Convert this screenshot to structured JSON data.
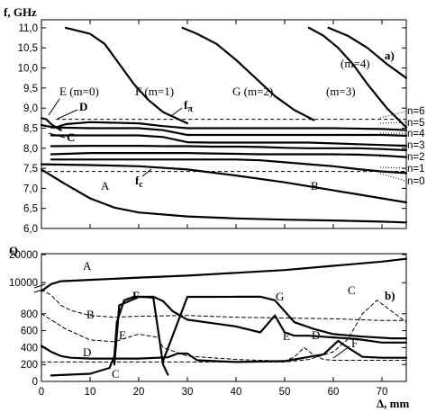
{
  "chart_data": [
    {
      "panel_label": "a)",
      "type": "line",
      "ylabel": "f, GHz",
      "xlim": [
        0,
        75
      ],
      "ylim": [
        6.0,
        11.2
      ],
      "yticks": [
        "6,0",
        "6,5",
        "7,0",
        "7,5",
        "8,0",
        "8,5",
        "9,0",
        "9,5",
        "10,0",
        "10,5",
        "11,0"
      ],
      "grid": false,
      "series": [
        {
          "name": "A",
          "style": "solid",
          "x": [
            0,
            5,
            10,
            15,
            20,
            30,
            40,
            50,
            60,
            70,
            75
          ],
          "y": [
            7.47,
            7.1,
            6.75,
            6.52,
            6.4,
            6.3,
            6.25,
            6.22,
            6.2,
            6.17,
            6.15
          ]
        },
        {
          "name": "B",
          "style": "solid",
          "x": [
            0,
            10,
            20,
            30,
            40,
            50,
            60,
            70,
            75
          ],
          "y": [
            7.6,
            7.58,
            7.55,
            7.47,
            7.32,
            7.15,
            6.95,
            6.75,
            6.65
          ]
        },
        {
          "style": "solid",
          "x": [
            2,
            10,
            20,
            25,
            30,
            35,
            40,
            45,
            50,
            55,
            60,
            65,
            70,
            75
          ],
          "y": [
            7.72,
            7.72,
            7.72,
            7.72,
            7.72,
            7.72,
            7.72,
            7.7,
            7.65,
            7.6,
            7.55,
            7.48,
            7.42,
            7.38
          ]
        },
        {
          "style": "solid",
          "x": [
            2,
            10,
            20,
            25,
            30,
            35,
            40,
            45,
            50,
            55,
            60,
            65,
            70,
            75
          ],
          "y": [
            7.85,
            7.88,
            7.88,
            7.88,
            7.88,
            7.87,
            7.86,
            7.85,
            7.85,
            7.85,
            7.85,
            7.84,
            7.82,
            7.78
          ]
        },
        {
          "style": "solid",
          "x": [
            2,
            10,
            20,
            25,
            30,
            35,
            40,
            45,
            50,
            55,
            60,
            65,
            70,
            75
          ],
          "y": [
            8.05,
            8.06,
            8.06,
            8.05,
            8.05,
            8.04,
            8.04,
            8.03,
            8.01,
            8.0,
            8.0,
            8.0,
            7.98,
            7.95
          ]
        },
        {
          "style": "solid",
          "x": [
            2,
            10,
            20,
            25,
            30,
            35,
            40,
            45,
            50,
            55,
            60,
            65,
            70,
            75
          ],
          "y": [
            8.32,
            8.32,
            8.32,
            8.28,
            8.15,
            8.14,
            8.14,
            8.14,
            8.14,
            8.14,
            8.12,
            8.1,
            8.08,
            8.06
          ]
        },
        {
          "style": "solid",
          "x": [
            2,
            10,
            20,
            25,
            30,
            35,
            40,
            45,
            50,
            55,
            60,
            65,
            70,
            75
          ],
          "y": [
            8.52,
            8.5,
            8.5,
            8.45,
            8.33,
            8.33,
            8.33,
            8.33,
            8.33,
            8.33,
            8.33,
            8.33,
            8.33,
            8.31
          ]
        },
        {
          "name": "D",
          "style": "solid",
          "x": [
            0,
            1,
            3,
            5,
            10,
            20,
            25,
            30,
            40,
            50,
            60,
            70,
            75
          ],
          "y": [
            8.58,
            8.55,
            8.52,
            8.6,
            8.65,
            8.62,
            8.55,
            8.5,
            8.5,
            8.5,
            8.5,
            8.48,
            8.45
          ]
        },
        {
          "name": "E (m=0)",
          "style": "solid",
          "x": [
            0,
            1,
            2,
            3,
            4
          ],
          "y": [
            8.75,
            8.72,
            8.6,
            8.52,
            8.45
          ]
        },
        {
          "name": "F (m=1)",
          "style": "solid",
          "x": [
            5,
            10,
            13,
            16,
            19,
            22,
            25,
            30
          ],
          "y": [
            11.0,
            10.85,
            10.6,
            10.1,
            9.6,
            9.2,
            8.9,
            8.62
          ]
        },
        {
          "name": "G (m=2)",
          "style": "solid",
          "x": [
            29,
            32,
            36,
            40,
            44,
            48,
            52,
            56
          ],
          "y": [
            11.0,
            10.85,
            10.6,
            10.2,
            9.75,
            9.3,
            8.95,
            8.7
          ]
        },
        {
          "name": "(m=3)",
          "style": "solid",
          "x": [
            55,
            58,
            61,
            64,
            67,
            71,
            75
          ],
          "y": [
            11.0,
            10.8,
            10.5,
            10.1,
            9.6,
            9.0,
            8.52
          ]
        },
        {
          "name": "(m=4)",
          "style": "solid",
          "x": [
            59,
            63,
            67,
            71,
            75
          ],
          "y": [
            11.0,
            10.8,
            10.5,
            10.1,
            9.75
          ]
        }
      ],
      "reference_lines": [
        {
          "label": "fπ",
          "y": 8.72,
          "style": "dashed",
          "x": [
            3,
            75
          ]
        },
        {
          "label": "fc",
          "y": 7.42,
          "style": "dashed",
          "x": [
            0,
            75
          ]
        }
      ],
      "annotations": {
        "curve_labels": [
          "A",
          "B",
          "C",
          "D",
          "E (m=0)",
          "F (m=1)",
          "G (m=2)",
          "(m=3)",
          "(m=4)"
        ],
        "mode_numbers": [
          "n=6",
          "n=5",
          "n=4",
          "n=3",
          "n=2",
          "n=1",
          "n=0"
        ],
        "fpi": "f",
        "fpi_sub": "π",
        "fc": "f",
        "fc_sub": "c"
      }
    },
    {
      "panel_label": "b)",
      "type": "line",
      "ylabel": "Q",
      "xlabel": "Δ, mm",
      "xlim": [
        0,
        75
      ],
      "xticks": [
        "0",
        "10",
        "20",
        "30",
        "40",
        "50",
        "60",
        "70"
      ],
      "yticks_lower": [
        "0",
        "200",
        "400",
        "600",
        "800"
      ],
      "yticks_upper": [
        "10000",
        "20000"
      ],
      "axis_break": true,
      "grid": false,
      "series": [
        {
          "name": "A",
          "style": "solid",
          "segment": "upper",
          "x": [
            0,
            2,
            4,
            10,
            20,
            30,
            40,
            50,
            60,
            70,
            75
          ],
          "y": [
            7000,
            9500,
            10500,
            11000,
            11800,
            12500,
            13500,
            14500,
            16000,
            17500,
            18500
          ]
        },
        {
          "name": "B",
          "style": "dashed",
          "segment": "upper-to-lower",
          "x": [
            0,
            2,
            4,
            6,
            10,
            15,
            20,
            30,
            40,
            50,
            60,
            70,
            75
          ],
          "y": [
            7500,
            2000,
            900,
            840,
            780,
            760,
            770,
            780,
            760,
            750,
            740,
            720,
            720
          ]
        },
        {
          "name": "C",
          "style": "solid",
          "segment": "lower",
          "x": [
            2,
            10,
            14,
            15,
            15.5,
            17,
            19,
            21,
            23,
            24,
            25,
            26
          ],
          "y": [
            70,
            90,
            160,
            300,
            700,
            960,
            1000,
            1000,
            990,
            600,
            200,
            80
          ]
        },
        {
          "name": "C",
          "style": "dashed",
          "segment": "lower",
          "x": [
            0,
            10,
            20,
            30,
            40,
            50,
            55,
            60,
            63,
            66,
            69,
            72,
            75
          ],
          "y": [
            230,
            230,
            230,
            230,
            230,
            230,
            260,
            350,
            500,
            800,
            960,
            830,
            700
          ]
        },
        {
          "name": "D",
          "style": "solid",
          "segment": "lower",
          "x": [
            0,
            2,
            4,
            6,
            10,
            20,
            26,
            28,
            30,
            32,
            40,
            50,
            58,
            61,
            63,
            66,
            70,
            75
          ],
          "y": [
            420,
            350,
            300,
            280,
            270,
            270,
            285,
            330,
            330,
            250,
            230,
            240,
            320,
            480,
            400,
            290,
            280,
            280
          ]
        },
        {
          "name": "E",
          "style": "dashed",
          "segment": "lower",
          "x": [
            0,
            5,
            10,
            15,
            20,
            24,
            25,
            30,
            40,
            50,
            52,
            54,
            56,
            58,
            60,
            65,
            70,
            75
          ],
          "y": [
            800,
            620,
            490,
            470,
            560,
            520,
            400,
            300,
            260,
            240,
            290,
            400,
            310,
            260,
            250,
            250,
            250,
            250
          ]
        },
        {
          "name": "F",
          "style": "solid",
          "segment": "lower",
          "x": [
            15,
            16,
            18,
            20,
            23,
            25,
            27,
            30,
            40,
            45,
            48,
            50,
            52,
            55,
            60,
            65,
            70,
            75
          ],
          "y": [
            200,
            900,
            950,
            1010,
            1040,
            950,
            830,
            730,
            650,
            580,
            780,
            580,
            540,
            540,
            520,
            500,
            460,
            460
          ]
        },
        {
          "name": "G",
          "style": "solid",
          "segment": "lower",
          "x": [
            25,
            30,
            35,
            40,
            45,
            48,
            52,
            56,
            60,
            66,
            72,
            75
          ],
          "y": [
            240,
            1000,
            1010,
            1040,
            1080,
            960,
            700,
            620,
            560,
            530,
            510,
            510
          ]
        }
      ]
    }
  ]
}
